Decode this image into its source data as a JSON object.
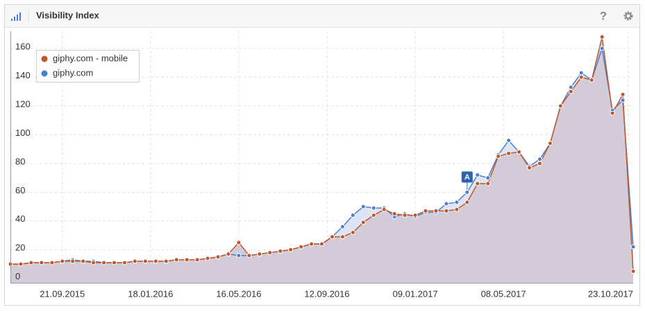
{
  "header": {
    "title": "Visibility Index",
    "help": "?"
  },
  "chart_data": {
    "type": "line",
    "x": [
      "13.07.2015",
      "27.07.2015",
      "10.08.2015",
      "24.08.2015",
      "07.09.2015",
      "21.09.2015",
      "05.10.2015",
      "19.10.2015",
      "02.11.2015",
      "16.11.2015",
      "30.11.2015",
      "14.12.2015",
      "28.12.2015",
      "11.01.2016",
      "25.01.2016",
      "08.02.2016",
      "22.02.2016",
      "07.03.2016",
      "21.03.2016",
      "04.04.2016",
      "18.04.2016",
      "02.05.2016",
      "16.05.2016",
      "30.05.2016",
      "13.06.2016",
      "27.06.2016",
      "11.07.2016",
      "25.07.2016",
      "08.08.2016",
      "22.08.2016",
      "05.09.2016",
      "19.09.2016",
      "03.10.2016",
      "17.10.2016",
      "31.10.2016",
      "14.11.2016",
      "28.11.2016",
      "12.12.2016",
      "26.12.2016",
      "09.01.2017",
      "23.01.2017",
      "06.02.2017",
      "20.02.2017",
      "06.03.2017",
      "20.03.2017",
      "03.04.2017",
      "17.04.2017",
      "01.05.2017",
      "15.05.2017",
      "29.05.2017",
      "12.06.2017",
      "26.06.2017",
      "10.07.2017",
      "24.07.2017",
      "07.08.2017",
      "21.08.2017",
      "04.09.2017",
      "18.09.2017",
      "02.10.2017",
      "16.10.2017",
      "30.10.2017"
    ],
    "series": [
      {
        "name": "giphy.com - mobile",
        "color": "#c0562b",
        "values": [
          10,
          10,
          11,
          11,
          11,
          12,
          12,
          12,
          11,
          11,
          11,
          11,
          12,
          12,
          12,
          12,
          13,
          13,
          13,
          14,
          15,
          17,
          25,
          16,
          17,
          18,
          19,
          20,
          22,
          24,
          24,
          29,
          29,
          32,
          39,
          44,
          48,
          45,
          44,
          44,
          47,
          47,
          47,
          48,
          53,
          66,
          66,
          85,
          87,
          88,
          77,
          80,
          94,
          120,
          130,
          140,
          138,
          168,
          115,
          128,
          5
        ]
      },
      {
        "name": "giphy.com",
        "color": "#4a7fd0",
        "values": [
          10,
          10,
          11,
          11,
          11,
          12,
          13,
          12,
          12,
          11,
          11,
          11,
          12,
          12,
          12,
          12,
          13,
          13,
          13,
          14,
          15,
          17,
          16,
          16,
          17,
          18,
          19,
          20,
          22,
          24,
          24,
          29,
          36,
          44,
          50,
          49,
          49,
          43,
          45,
          43,
          46,
          46,
          52,
          53,
          60,
          72,
          70,
          86,
          96,
          88,
          78,
          83,
          94,
          120,
          133,
          143,
          138,
          160,
          117,
          124,
          22
        ]
      }
    ],
    "xlim": [
      "13.07.2015",
      "30.10.2017"
    ],
    "xticks": [
      "21.09.2015",
      "18.01.2016",
      "16.05.2016",
      "12.09.2016",
      "09.01.2017",
      "08.05.2017",
      "23.10.2017"
    ],
    "ylim": [
      -3,
      172
    ],
    "yticks": [
      0,
      20,
      40,
      60,
      80,
      100,
      120,
      140,
      160
    ],
    "grid": true,
    "legend": "upper left",
    "annotations": [
      {
        "x": "20.03.2017",
        "label": "A"
      }
    ]
  }
}
